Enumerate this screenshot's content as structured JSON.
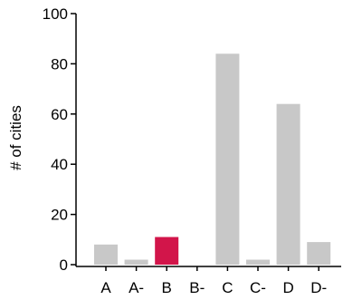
{
  "chart_data": {
    "type": "bar",
    "title": "",
    "xlabel": "",
    "ylabel": "# of cities",
    "ylim": [
      0,
      100
    ],
    "yticks": [
      0,
      20,
      40,
      60,
      80,
      100
    ],
    "categories": [
      "A",
      "A-",
      "B",
      "B-",
      "C",
      "C-",
      "D",
      "D-"
    ],
    "values": [
      8,
      2,
      11,
      0,
      84,
      2,
      64,
      9
    ],
    "highlight_category": "B",
    "colors": {
      "default_bar": "#c8c8c8",
      "highlight_bar": "#d2154a",
      "axis": "#000000"
    },
    "grid": false
  }
}
